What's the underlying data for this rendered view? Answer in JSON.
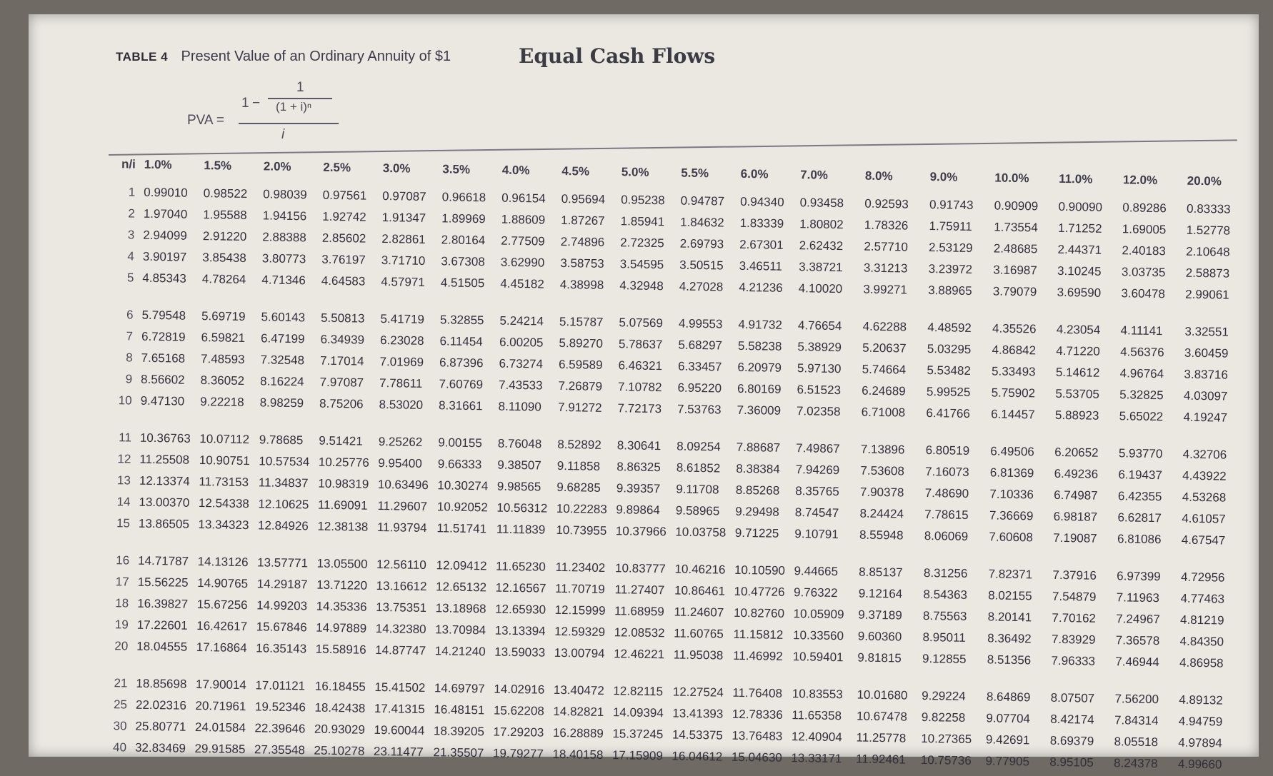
{
  "header": {
    "table_label": "TABLE 4",
    "title": "Present Value of an Ordinary Annuity of $1",
    "handwritten_note": "Equal Cash Flows"
  },
  "formula": {
    "lhs": "PVA",
    "equals": "=",
    "one": "1",
    "minus": "−",
    "inner_numerator": "1",
    "inner_denominator": "(1 + i)ⁿ",
    "denominator": "i"
  },
  "table": {
    "corner_label": "n/i",
    "rates": [
      "1.0%",
      "1.5%",
      "2.0%",
      "2.5%",
      "3.0%",
      "3.5%",
      "4.0%",
      "4.5%",
      "5.0%",
      "5.5%",
      "6.0%",
      "7.0%",
      "8.0%",
      "9.0%",
      "10.0%",
      "11.0%",
      "12.0%",
      "20.0%"
    ],
    "rows": [
      {
        "n": "1",
        "v": [
          "0.99010",
          "0.98522",
          "0.98039",
          "0.97561",
          "0.97087",
          "0.96618",
          "0.96154",
          "0.95694",
          "0.95238",
          "0.94787",
          "0.94340",
          "0.93458",
          "0.92593",
          "0.91743",
          "0.90909",
          "0.90090",
          "0.89286",
          "0.83333"
        ]
      },
      {
        "n": "2",
        "v": [
          "1.97040",
          "1.95588",
          "1.94156",
          "1.92742",
          "1.91347",
          "1.89969",
          "1.88609",
          "1.87267",
          "1.85941",
          "1.84632",
          "1.83339",
          "1.80802",
          "1.78326",
          "1.75911",
          "1.73554",
          "1.71252",
          "1.69005",
          "1.52778"
        ]
      },
      {
        "n": "3",
        "v": [
          "2.94099",
          "2.91220",
          "2.88388",
          "2.85602",
          "2.82861",
          "2.80164",
          "2.77509",
          "2.74896",
          "2.72325",
          "2.69793",
          "2.67301",
          "2.62432",
          "2.57710",
          "2.53129",
          "2.48685",
          "2.44371",
          "2.40183",
          "2.10648"
        ]
      },
      {
        "n": "4",
        "v": [
          "3.90197",
          "3.85438",
          "3.80773",
          "3.76197",
          "3.71710",
          "3.67308",
          "3.62990",
          "3.58753",
          "3.54595",
          "3.50515",
          "3.46511",
          "3.38721",
          "3.31213",
          "3.23972",
          "3.16987",
          "3.10245",
          "3.03735",
          "2.58873"
        ]
      },
      {
        "n": "5",
        "v": [
          "4.85343",
          "4.78264",
          "4.71346",
          "4.64583",
          "4.57971",
          "4.51505",
          "4.45182",
          "4.38998",
          "4.32948",
          "4.27028",
          "4.21236",
          "4.10020",
          "3.99271",
          "3.88965",
          "3.79079",
          "3.69590",
          "3.60478",
          "2.99061"
        ]
      },
      {
        "n": "6",
        "v": [
          "5.79548",
          "5.69719",
          "5.60143",
          "5.50813",
          "5.41719",
          "5.32855",
          "5.24214",
          "5.15787",
          "5.07569",
          "4.99553",
          "4.91732",
          "4.76654",
          "4.62288",
          "4.48592",
          "4.35526",
          "4.23054",
          "4.11141",
          "3.32551"
        ]
      },
      {
        "n": "7",
        "v": [
          "6.72819",
          "6.59821",
          "6.47199",
          "6.34939",
          "6.23028",
          "6.11454",
          "6.00205",
          "5.89270",
          "5.78637",
          "5.68297",
          "5.58238",
          "5.38929",
          "5.20637",
          "5.03295",
          "4.86842",
          "4.71220",
          "4.56376",
          "3.60459"
        ]
      },
      {
        "n": "8",
        "v": [
          "7.65168",
          "7.48593",
          "7.32548",
          "7.17014",
          "7.01969",
          "6.87396",
          "6.73274",
          "6.59589",
          "6.46321",
          "6.33457",
          "6.20979",
          "5.97130",
          "5.74664",
          "5.53482",
          "5.33493",
          "5.14612",
          "4.96764",
          "3.83716"
        ]
      },
      {
        "n": "9",
        "v": [
          "8.56602",
          "8.36052",
          "8.16224",
          "7.97087",
          "7.78611",
          "7.60769",
          "7.43533",
          "7.26879",
          "7.10782",
          "6.95220",
          "6.80169",
          "6.51523",
          "6.24689",
          "5.99525",
          "5.75902",
          "5.53705",
          "5.32825",
          "4.03097"
        ]
      },
      {
        "n": "10",
        "v": [
          "9.47130",
          "9.22218",
          "8.98259",
          "8.75206",
          "8.53020",
          "8.31661",
          "8.11090",
          "7.91272",
          "7.72173",
          "7.53763",
          "7.36009",
          "7.02358",
          "6.71008",
          "6.41766",
          "6.14457",
          "5.88923",
          "5.65022",
          "4.19247"
        ]
      },
      {
        "n": "11",
        "v": [
          "10.36763",
          "10.07112",
          "9.78685",
          "9.51421",
          "9.25262",
          "9.00155",
          "8.76048",
          "8.52892",
          "8.30641",
          "8.09254",
          "7.88687",
          "7.49867",
          "7.13896",
          "6.80519",
          "6.49506",
          "6.20652",
          "5.93770",
          "4.32706"
        ]
      },
      {
        "n": "12",
        "v": [
          "11.25508",
          "10.90751",
          "10.57534",
          "10.25776",
          "9.95400",
          "9.66333",
          "9.38507",
          "9.11858",
          "8.86325",
          "8.61852",
          "8.38384",
          "7.94269",
          "7.53608",
          "7.16073",
          "6.81369",
          "6.49236",
          "6.19437",
          "4.43922"
        ]
      },
      {
        "n": "13",
        "v": [
          "12.13374",
          "11.73153",
          "11.34837",
          "10.98319",
          "10.63496",
          "10.30274",
          "9.98565",
          "9.68285",
          "9.39357",
          "9.11708",
          "8.85268",
          "8.35765",
          "7.90378",
          "7.48690",
          "7.10336",
          "6.74987",
          "6.42355",
          "4.53268"
        ]
      },
      {
        "n": "14",
        "v": [
          "13.00370",
          "12.54338",
          "12.10625",
          "11.69091",
          "11.29607",
          "10.92052",
          "10.56312",
          "10.22283",
          "9.89864",
          "9.58965",
          "9.29498",
          "8.74547",
          "8.24424",
          "7.78615",
          "7.36669",
          "6.98187",
          "6.62817",
          "4.61057"
        ]
      },
      {
        "n": "15",
        "v": [
          "13.86505",
          "13.34323",
          "12.84926",
          "12.38138",
          "11.93794",
          "11.51741",
          "11.11839",
          "10.73955",
          "10.37966",
          "10.03758",
          "9.71225",
          "9.10791",
          "8.55948",
          "8.06069",
          "7.60608",
          "7.19087",
          "6.81086",
          "4.67547"
        ]
      },
      {
        "n": "16",
        "v": [
          "14.71787",
          "14.13126",
          "13.57771",
          "13.05500",
          "12.56110",
          "12.09412",
          "11.65230",
          "11.23402",
          "10.83777",
          "10.46216",
          "10.10590",
          "9.44665",
          "8.85137",
          "8.31256",
          "7.82371",
          "7.37916",
          "6.97399",
          "4.72956"
        ]
      },
      {
        "n": "17",
        "v": [
          "15.56225",
          "14.90765",
          "14.29187",
          "13.71220",
          "13.16612",
          "12.65132",
          "12.16567",
          "11.70719",
          "11.27407",
          "10.86461",
          "10.47726",
          "9.76322",
          "9.12164",
          "8.54363",
          "8.02155",
          "7.54879",
          "7.11963",
          "4.77463"
        ]
      },
      {
        "n": "18",
        "v": [
          "16.39827",
          "15.67256",
          "14.99203",
          "14.35336",
          "13.75351",
          "13.18968",
          "12.65930",
          "12.15999",
          "11.68959",
          "11.24607",
          "10.82760",
          "10.05909",
          "9.37189",
          "8.75563",
          "8.20141",
          "7.70162",
          "7.24967",
          "4.81219"
        ]
      },
      {
        "n": "19",
        "v": [
          "17.22601",
          "16.42617",
          "15.67846",
          "14.97889",
          "14.32380",
          "13.70984",
          "13.13394",
          "12.59329",
          "12.08532",
          "11.60765",
          "11.15812",
          "10.33560",
          "9.60360",
          "8.95011",
          "8.36492",
          "7.83929",
          "7.36578",
          "4.84350"
        ]
      },
      {
        "n": "20",
        "v": [
          "18.04555",
          "17.16864",
          "16.35143",
          "15.58916",
          "14.87747",
          "14.21240",
          "13.59033",
          "13.00794",
          "12.46221",
          "11.95038",
          "11.46992",
          "10.59401",
          "9.81815",
          "9.12855",
          "8.51356",
          "7.96333",
          "7.46944",
          "4.86958"
        ]
      },
      {
        "n": "21",
        "v": [
          "18.85698",
          "17.90014",
          "17.01121",
          "16.18455",
          "15.41502",
          "14.69797",
          "14.02916",
          "13.40472",
          "12.82115",
          "12.27524",
          "11.76408",
          "10.83553",
          "10.01680",
          "9.29224",
          "8.64869",
          "8.07507",
          "7.56200",
          "4.89132"
        ]
      },
      {
        "n": "25",
        "v": [
          "22.02316",
          "20.71961",
          "19.52346",
          "18.42438",
          "17.41315",
          "16.48151",
          "15.62208",
          "14.82821",
          "14.09394",
          "13.41393",
          "12.78336",
          "11.65358",
          "10.67478",
          "9.82258",
          "9.07704",
          "8.42174",
          "7.84314",
          "4.94759"
        ]
      },
      {
        "n": "30",
        "v": [
          "25.80771",
          "24.01584",
          "22.39646",
          "20.93029",
          "19.60044",
          "18.39205",
          "17.29203",
          "16.28889",
          "15.37245",
          "14.53375",
          "13.76483",
          "12.40904",
          "11.25778",
          "10.27365",
          "9.42691",
          "8.69379",
          "8.05518",
          "4.97894"
        ]
      },
      {
        "n": "40",
        "v": [
          "32.83469",
          "29.91585",
          "27.35548",
          "25.10278",
          "23.11477",
          "21.35507",
          "19.79277",
          "18.40158",
          "17.15909",
          "16.04612",
          "15.04630",
          "13.33171",
          "11.92461",
          "10.75736",
          "9.77905",
          "8.95105",
          "8.24378",
          "4.99660"
        ]
      }
    ]
  }
}
